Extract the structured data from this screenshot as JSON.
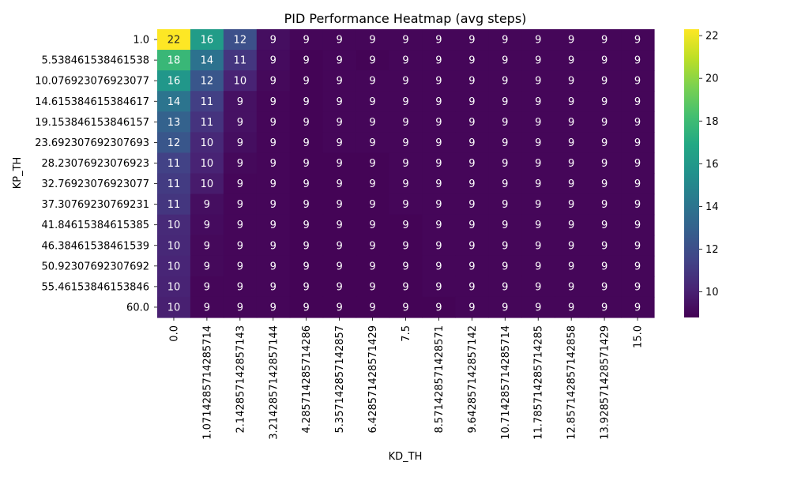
{
  "chart_data": {
    "type": "heatmap",
    "title": "PID Performance Heatmap (avg steps)",
    "xlabel": "KD_TH",
    "ylabel": "KP_TH",
    "x_tick_labels": [
      "0.0",
      "1.0714285714285714",
      "2.142857142857143",
      "3.2142857142857144",
      "4.285714285714286",
      "5.357142857142857",
      "6.428571428571429",
      "7.5",
      "8.571428571428571",
      "9.642857142857142",
      "10.714285714285714",
      "11.785714285714285",
      "12.857142857142858",
      "13.928571428571429",
      "15.0"
    ],
    "y_tick_labels": [
      "1.0",
      "5.538461538461538",
      "10.076923076923077",
      "14.615384615384617",
      "19.153846153846157",
      "23.692307692307693",
      "28.23076923076923",
      "32.76923076923077",
      "37.30769230769231",
      "41.84615384615385",
      "46.38461538461539",
      "50.92307692307692",
      "55.46153846153846",
      "60.0"
    ],
    "values": [
      [
        22.3,
        16.2,
        12.1,
        9.3,
        9.0,
        9.0,
        9.0,
        9.0,
        9.0,
        9.0,
        9.0,
        9.0,
        9.0,
        9.0,
        9.0
      ],
      [
        17.8,
        13.9,
        10.9,
        9.2,
        8.9,
        9.0,
        8.9,
        9.0,
        9.0,
        9.0,
        9.0,
        9.0,
        9.0,
        9.0,
        9.0
      ],
      [
        15.9,
        12.4,
        10.1,
        9.1,
        8.9,
        9.0,
        9.0,
        9.0,
        9.0,
        9.0,
        9.0,
        9.0,
        9.0,
        9.0,
        9.0
      ],
      [
        14.0,
        11.3,
        9.4,
        9.0,
        8.9,
        9.0,
        9.0,
        9.0,
        9.0,
        9.0,
        9.0,
        9.0,
        9.0,
        9.0,
        9.0
      ],
      [
        13.0,
        10.8,
        9.4,
        9.0,
        8.9,
        9.0,
        9.0,
        9.0,
        9.0,
        9.0,
        9.0,
        9.0,
        9.0,
        9.0,
        9.0
      ],
      [
        12.4,
        10.3,
        9.3,
        9.0,
        8.9,
        9.0,
        9.0,
        9.0,
        9.0,
        9.0,
        9.0,
        9.0,
        9.0,
        9.0,
        9.0
      ],
      [
        11.4,
        10.1,
        9.1,
        9.0,
        8.9,
        8.9,
        8.9,
        9.0,
        9.0,
        9.0,
        9.0,
        9.0,
        9.0,
        9.0,
        9.0
      ],
      [
        11.1,
        9.8,
        9.0,
        9.0,
        8.9,
        8.9,
        8.9,
        9.0,
        9.0,
        9.0,
        9.0,
        9.0,
        9.0,
        9.0,
        9.0
      ],
      [
        10.9,
        9.3,
        9.0,
        9.0,
        8.9,
        8.9,
        8.9,
        9.0,
        9.0,
        9.0,
        9.0,
        9.0,
        9.0,
        9.0,
        9.0
      ],
      [
        10.4,
        9.2,
        9.0,
        9.0,
        8.9,
        8.9,
        8.9,
        8.9,
        9.0,
        9.0,
        9.0,
        9.0,
        9.0,
        9.0,
        9.0
      ],
      [
        10.3,
        9.1,
        9.0,
        9.0,
        8.9,
        8.9,
        8.9,
        8.9,
        9.0,
        9.0,
        9.0,
        9.0,
        9.0,
        9.0,
        9.0
      ],
      [
        10.2,
        9.1,
        9.0,
        9.0,
        8.9,
        8.9,
        8.9,
        8.9,
        9.0,
        9.0,
        9.0,
        9.0,
        9.0,
        9.0,
        9.0
      ],
      [
        10.1,
        9.0,
        9.0,
        9.0,
        8.9,
        8.9,
        8.9,
        8.9,
        9.0,
        9.0,
        9.0,
        9.0,
        9.0,
        9.0,
        9.0
      ],
      [
        10.0,
        9.0,
        9.0,
        9.0,
        8.9,
        8.9,
        8.9,
        8.9,
        8.9,
        9.0,
        9.0,
        9.0,
        9.0,
        9.0,
        9.0
      ]
    ],
    "annotations": [
      [
        "22",
        "16",
        "12",
        "9",
        "9",
        "9",
        "9",
        "9",
        "9",
        "9",
        "9",
        "9",
        "9",
        "9",
        "9"
      ],
      [
        "18",
        "14",
        "11",
        "9",
        "9",
        "9",
        "9",
        "9",
        "9",
        "9",
        "9",
        "9",
        "9",
        "9",
        "9"
      ],
      [
        "16",
        "12",
        "10",
        "9",
        "9",
        "9",
        "9",
        "9",
        "9",
        "9",
        "9",
        "9",
        "9",
        "9",
        "9"
      ],
      [
        "14",
        "11",
        "9",
        "9",
        "9",
        "9",
        "9",
        "9",
        "9",
        "9",
        "9",
        "9",
        "9",
        "9",
        "9"
      ],
      [
        "13",
        "11",
        "9",
        "9",
        "9",
        "9",
        "9",
        "9",
        "9",
        "9",
        "9",
        "9",
        "9",
        "9",
        "9"
      ],
      [
        "12",
        "10",
        "9",
        "9",
        "9",
        "9",
        "9",
        "9",
        "9",
        "9",
        "9",
        "9",
        "9",
        "9",
        "9"
      ],
      [
        "11",
        "10",
        "9",
        "9",
        "9",
        "9",
        "9",
        "9",
        "9",
        "9",
        "9",
        "9",
        "9",
        "9",
        "9"
      ],
      [
        "11",
        "10",
        "9",
        "9",
        "9",
        "9",
        "9",
        "9",
        "9",
        "9",
        "9",
        "9",
        "9",
        "9",
        "9"
      ],
      [
        "11",
        "9",
        "9",
        "9",
        "9",
        "9",
        "9",
        "9",
        "9",
        "9",
        "9",
        "9",
        "9",
        "9",
        "9"
      ],
      [
        "10",
        "9",
        "9",
        "9",
        "9",
        "9",
        "9",
        "9",
        "9",
        "9",
        "9",
        "9",
        "9",
        "9",
        "9"
      ],
      [
        "10",
        "9",
        "9",
        "9",
        "9",
        "9",
        "9",
        "9",
        "9",
        "9",
        "9",
        "9",
        "9",
        "9",
        "9"
      ],
      [
        "10",
        "9",
        "9",
        "9",
        "9",
        "9",
        "9",
        "9",
        "9",
        "9",
        "9",
        "9",
        "9",
        "9",
        "9"
      ],
      [
        "10",
        "9",
        "9",
        "9",
        "9",
        "9",
        "9",
        "9",
        "9",
        "9",
        "9",
        "9",
        "9",
        "9",
        "9"
      ],
      [
        "10",
        "9",
        "9",
        "9",
        "9",
        "9",
        "9",
        "9",
        "9",
        "9",
        "9",
        "9",
        "9",
        "9",
        "9"
      ]
    ],
    "colormap": "viridis",
    "colorbar": {
      "range": [
        8.8,
        22.3
      ],
      "ticks": [
        10,
        12,
        14,
        16,
        18,
        20,
        22
      ]
    },
    "grid": false,
    "legend": "colorbar-right"
  }
}
